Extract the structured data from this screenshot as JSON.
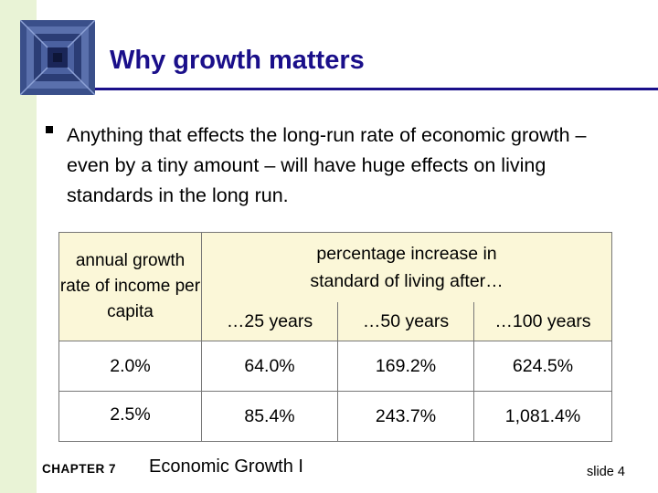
{
  "slide": {
    "title": "Why growth matters",
    "bullet": "Anything that effects the long-run rate of economic growth – even by a tiny amount – will have huge effects on living standards in the long run."
  },
  "table": {
    "row_header": "annual growth rate of income per capita",
    "span_header": "percentage increase in standard of living after…",
    "columns": [
      "…25 years",
      "…50 years",
      "…100 years"
    ],
    "rows": [
      {
        "rate": "2.0%",
        "values": [
          "64.0%",
          "169.2%",
          "624.5%"
        ]
      },
      {
        "rate": "2.5%",
        "values": [
          "85.4%",
          "243.7%",
          "1,081.4%"
        ]
      }
    ]
  },
  "footer": {
    "chapter": "CHAPTER 7",
    "topic": "Economic Growth I",
    "slide_number": "slide 4"
  },
  "colors": {
    "title": "#1a0f8a",
    "header_fill": "#fbf7d8",
    "left_bar": "#e9f3d6"
  }
}
